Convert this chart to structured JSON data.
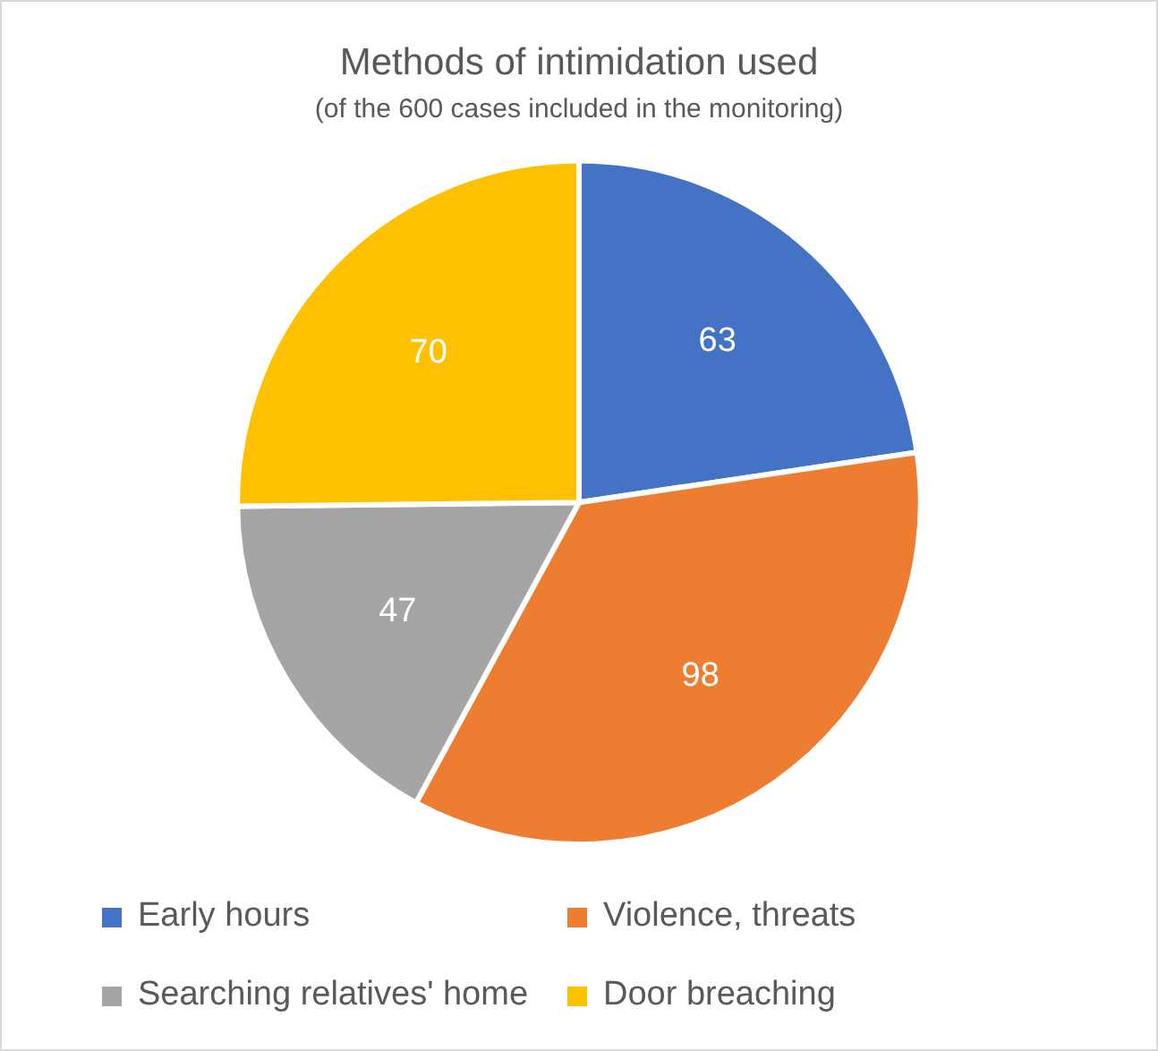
{
  "chart_data": {
    "type": "pie",
    "title": "Methods of intimidation used",
    "subtitle": "(of the 600 cases included in the monitoring)",
    "categories": [
      "Early hours",
      "Violence, threats",
      "Searching relatives' home",
      "Door breaching"
    ],
    "values": [
      63,
      98,
      47,
      70
    ],
    "colors": [
      "#4472c4",
      "#ed7d31",
      "#a5a5a5",
      "#ffc000"
    ],
    "data_labels": true,
    "legend": "bottom"
  }
}
